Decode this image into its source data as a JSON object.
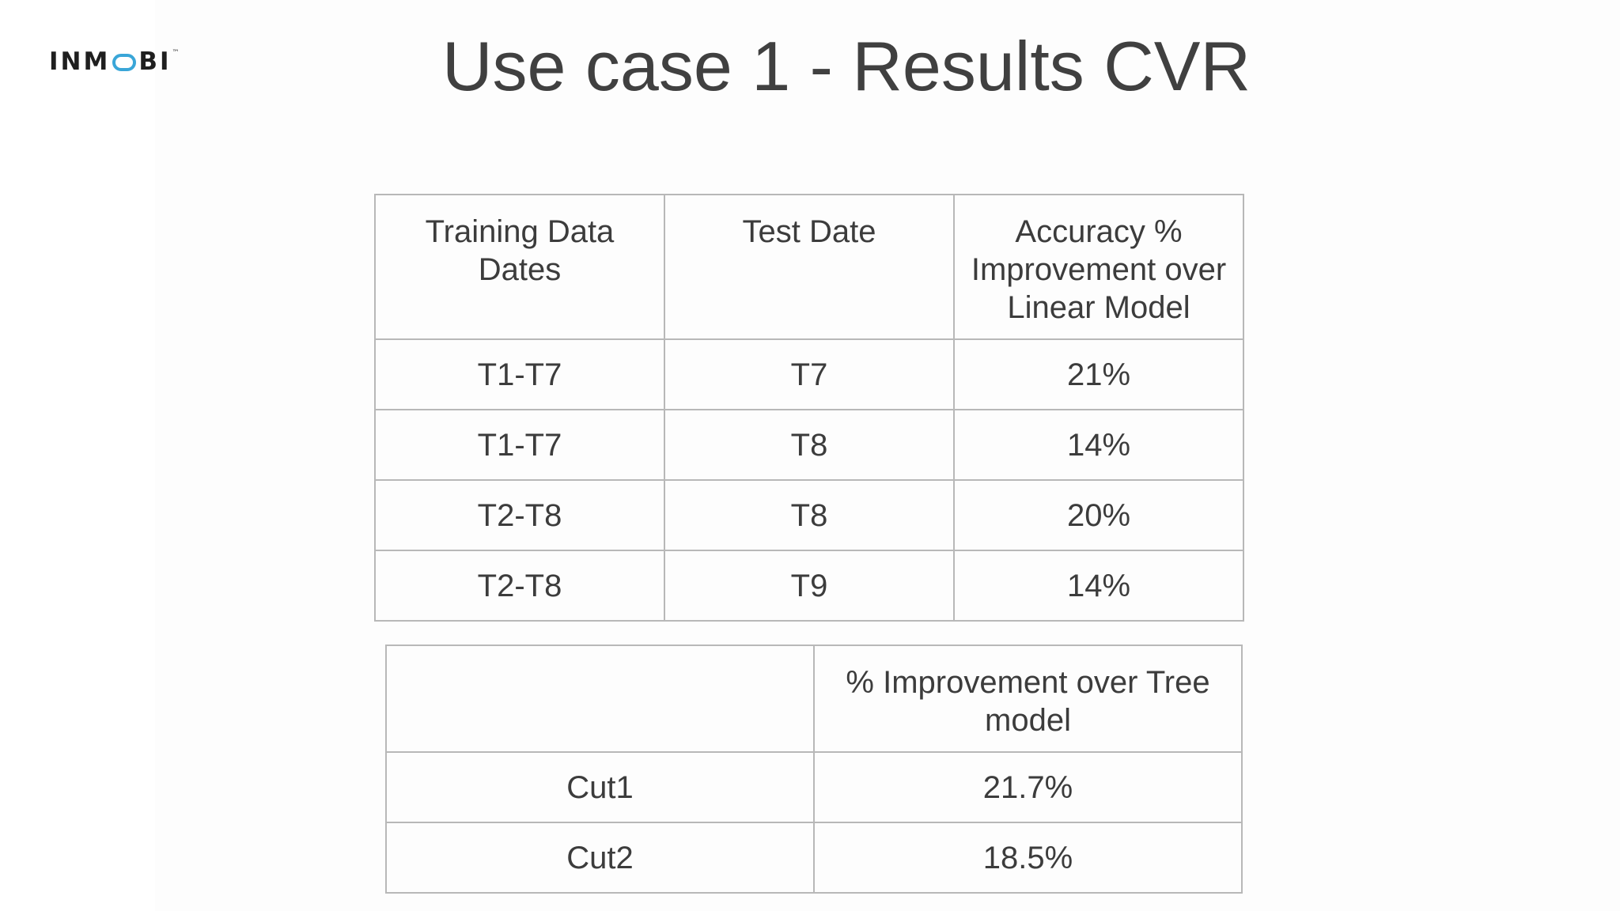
{
  "logo": {
    "text_before": "INM",
    "text_after": "BI",
    "brand_color": "#3aa6d8"
  },
  "title": "Use case 1 - Results CVR",
  "table1": {
    "headers": [
      "Training Data Dates",
      "Test Date",
      "Accuracy % Improvement over Linear Model"
    ],
    "rows": [
      [
        "T1-T7",
        "T7",
        "21%"
      ],
      [
        "T1-T7",
        "T8",
        "14%"
      ],
      [
        "T2-T8",
        "T8",
        "20%"
      ],
      [
        "T2-T8",
        "T9",
        "14%"
      ]
    ]
  },
  "table2": {
    "headers": [
      "",
      "% Improvement over Tree model"
    ],
    "rows": [
      [
        "Cut1",
        "21.7%"
      ],
      [
        "Cut2",
        "18.5%"
      ]
    ]
  },
  "colors": {
    "text": "#3c3c3c",
    "border": "#b8b8b8",
    "background": "#fdfdfd"
  }
}
